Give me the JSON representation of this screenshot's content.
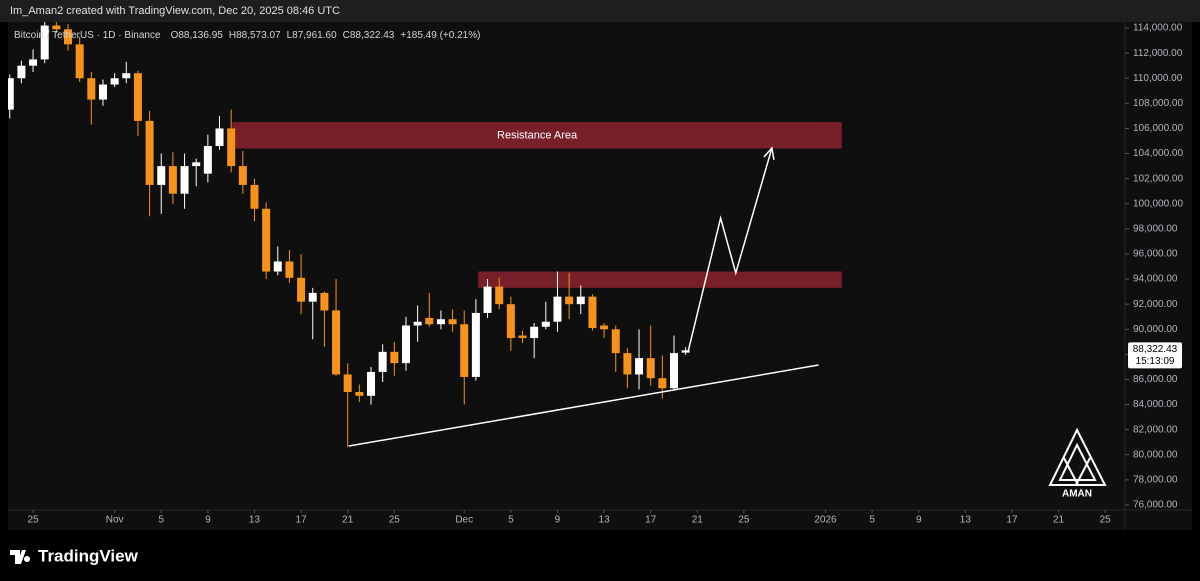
{
  "header": {
    "text": "Im_Aman2 created with TradingView.com, Dec 20, 2025 08:46 UTC"
  },
  "footer": {
    "brand": "TradingView",
    "logo": "AMAN"
  },
  "chart_data": {
    "type": "candlestick",
    "symbol": "Bitcoin / TetherUS · 1D · Binance",
    "legend": [
      {
        "label": "O",
        "value": "88,136.95"
      },
      {
        "label": "H",
        "value": "88,573.07"
      },
      {
        "label": "L",
        "value": "87,961.60"
      },
      {
        "label": "C",
        "value": "88,322.43"
      }
    ],
    "change": "+185.49 (+0.21%)",
    "last_price_label": "88,322.43",
    "countdown": "15:13:09",
    "up_color": "#ffffff",
    "down_color": "#f7931a",
    "x": [
      -2,
      -1,
      0,
      1,
      2,
      3,
      4,
      5,
      6,
      7,
      8,
      9,
      10,
      11,
      12,
      13,
      14,
      15,
      16,
      17,
      18,
      19,
      20,
      21,
      22,
      23,
      24,
      25,
      26,
      27,
      28,
      29,
      30,
      31,
      32,
      33,
      34,
      35,
      36,
      37,
      38,
      39,
      40,
      41,
      42,
      43,
      44,
      45,
      46,
      47,
      48,
      49,
      50,
      51,
      52,
      53,
      54,
      55,
      56
    ],
    "open": [
      107500,
      110000,
      111000,
      111500,
      114200,
      113900,
      112700,
      110000,
      108300,
      109500,
      110000,
      110400,
      106600,
      101500,
      103000,
      100800,
      103000,
      102400,
      104600,
      106000,
      103000,
      101500,
      99600,
      94600,
      95400,
      94100,
      92200,
      92900,
      91500,
      86400,
      85000,
      84700,
      86600,
      88200,
      87300,
      90300,
      90900,
      90400,
      90800,
      90400,
      86200,
      91300,
      93400,
      92000,
      89500,
      89300,
      90200,
      90600,
      92600,
      92000,
      92600,
      90300,
      90000,
      88100,
      86400,
      87700,
      86100,
      85300,
      88136.95
    ],
    "high": [
      110300,
      111400,
      112300,
      115500,
      116000,
      114300,
      113300,
      110500,
      109900,
      110400,
      111300,
      110600,
      107400,
      104000,
      104100,
      104000,
      103600,
      105500,
      107000,
      107500,
      104200,
      102000,
      100100,
      96600,
      96300,
      96000,
      93300,
      93000,
      94000,
      87300,
      85600,
      87000,
      88800,
      89000,
      91000,
      91900,
      92900,
      91500,
      91600,
      91500,
      92400,
      94000,
      94100,
      92600,
      89900,
      90500,
      92200,
      94600,
      94500,
      93500,
      92800,
      90500,
      90300,
      88500,
      90000,
      90300,
      87900,
      89500,
      88573.07
    ],
    "low": [
      106800,
      109600,
      110500,
      111200,
      113600,
      112200,
      109700,
      106300,
      107800,
      109300,
      109600,
      105400,
      99000,
      99200,
      100000,
      99600,
      101400,
      101700,
      104300,
      102500,
      100800,
      98600,
      94000,
      94300,
      93700,
      91200,
      89200,
      88600,
      86300,
      80600,
      84200,
      84000,
      85800,
      86300,
      86700,
      89000,
      90200,
      90000,
      89800,
      84000,
      85900,
      90900,
      91600,
      88300,
      88900,
      87700,
      90000,
      89800,
      90800,
      91200,
      89900,
      89300,
      86600,
      85300,
      85200,
      85500,
      84500,
      85100,
      87961.6
    ],
    "close": [
      110000,
      111000,
      111500,
      114200,
      113900,
      112700,
      110000,
      108300,
      109500,
      110000,
      110400,
      106600,
      101500,
      103000,
      100800,
      103000,
      103300,
      104600,
      106000,
      103000,
      101500,
      99600,
      94600,
      95400,
      94100,
      92200,
      92900,
      91500,
      86400,
      85000,
      84700,
      86600,
      88200,
      87300,
      90300,
      90600,
      90400,
      90800,
      90400,
      86200,
      91300,
      93400,
      92000,
      89300,
      89300,
      90200,
      90600,
      92600,
      92000,
      92600,
      90100,
      90000,
      88100,
      86400,
      87700,
      86100,
      85300,
      88100,
      88322.43
    ],
    "zones": [
      {
        "label": "Resistance Area",
        "color": "#78202a",
        "x": [
          17.1,
          69.4
        ],
        "y": [
          104400,
          106500
        ]
      },
      {
        "color": "#78202a",
        "x": [
          38.2,
          69.4
        ],
        "y": [
          93300,
          94600
        ]
      }
    ],
    "trendline": {
      "color": "#ffffff",
      "x": [
        27.1,
        67.4
      ],
      "y": [
        80700,
        87150
      ]
    },
    "arrow": {
      "color": "#ffffff",
      "x": [
        56.2,
        59.0,
        60.3,
        63.4
      ],
      "y": [
        88180,
        98860,
        94480,
        104440
      ]
    },
    "xlim": [
      -2.15,
      93.7
    ],
    "ylim": [
      75600,
      114640
    ],
    "xticks": [
      {
        "value": 0,
        "label": "25"
      },
      {
        "value": 7,
        "label": "Nov"
      },
      {
        "value": 11,
        "label": "5"
      },
      {
        "value": 15,
        "label": "9"
      },
      {
        "value": 19,
        "label": "13"
      },
      {
        "value": 23,
        "label": "17"
      },
      {
        "value": 27,
        "label": "21"
      },
      {
        "value": 31,
        "label": "25"
      },
      {
        "value": 37,
        "label": "Dec"
      },
      {
        "value": 41,
        "label": "5"
      },
      {
        "value": 45,
        "label": "9"
      },
      {
        "value": 49,
        "label": "13"
      },
      {
        "value": 53,
        "label": "17"
      },
      {
        "value": 57,
        "label": "21"
      },
      {
        "value": 61,
        "label": "25"
      },
      {
        "value": 68,
        "label": "2026"
      },
      {
        "value": 72,
        "label": "5"
      },
      {
        "value": 76,
        "label": "9"
      },
      {
        "value": 80,
        "label": "13"
      },
      {
        "value": 84,
        "label": "17"
      },
      {
        "value": 88,
        "label": "21"
      },
      {
        "value": 92,
        "label": "25"
      }
    ],
    "yticks": [
      {
        "value": 76000,
        "label": "76,000.00"
      },
      {
        "value": 78000,
        "label": "78,000.00"
      },
      {
        "value": 80000,
        "label": "80,000.00"
      },
      {
        "value": 82000,
        "label": "82,000.00"
      },
      {
        "value": 84000,
        "label": "84,000.00"
      },
      {
        "value": 86000,
        "label": "86,000.00"
      },
      {
        "value": 88000,
        "label": "88,000.00"
      },
      {
        "value": 90000,
        "label": "90,000.00"
      },
      {
        "value": 92000,
        "label": "92,000.00"
      },
      {
        "value": 94000,
        "label": "94,000.00"
      },
      {
        "value": 96000,
        "label": "96,000.00"
      },
      {
        "value": 98000,
        "label": "98,000.00"
      },
      {
        "value": 100000,
        "label": "100,000.00"
      },
      {
        "value": 102000,
        "label": "102,000.00"
      },
      {
        "value": 104000,
        "label": "104,000.00"
      },
      {
        "value": 106000,
        "label": "106,000.00"
      },
      {
        "value": 108000,
        "label": "108,000.00"
      },
      {
        "value": 110000,
        "label": "110,000.00"
      },
      {
        "value": 112000,
        "label": "112,000.00"
      },
      {
        "value": 114000,
        "label": "114,000.00"
      }
    ]
  }
}
